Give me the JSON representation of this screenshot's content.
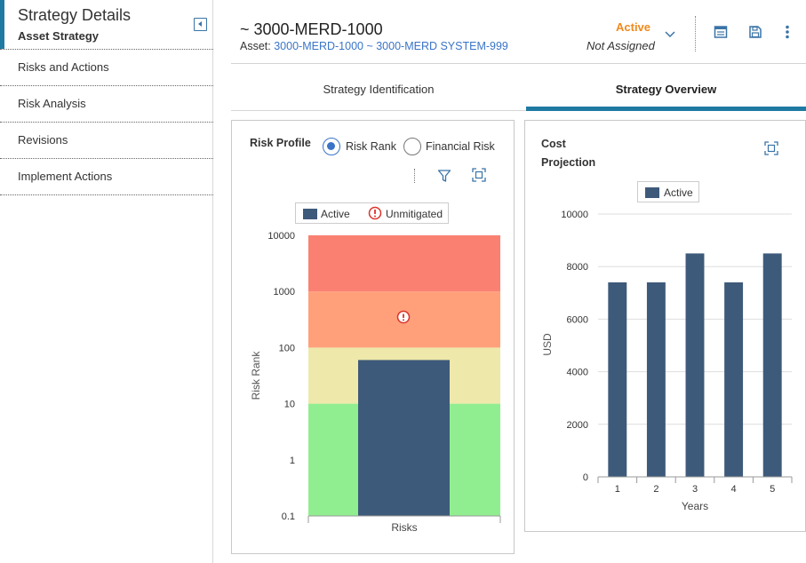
{
  "sidebar": {
    "title": "Strategy Details",
    "subtitle": "Asset Strategy",
    "items": [
      {
        "label": "Risks and Actions"
      },
      {
        "label": "Risk Analysis"
      },
      {
        "label": "Revisions"
      },
      {
        "label": "Implement Actions"
      }
    ]
  },
  "header": {
    "title": "~ 3000-MERD-1000",
    "asset_prefix": "Asset:",
    "asset_link": "3000-MERD-1000 ~ 3000-MERD SYSTEM-999",
    "status": "Active",
    "assignment": "Not Assigned"
  },
  "tabs": [
    {
      "label": "Strategy Identification",
      "active": false
    },
    {
      "label": "Strategy Overview",
      "active": true
    }
  ],
  "risk_profile": {
    "title": "Risk Profile",
    "options": [
      {
        "label": "Risk Rank",
        "selected": true
      },
      {
        "label": "Financial Risk",
        "selected": false
      }
    ]
  },
  "cost_projection": {
    "title": "Cost Projection"
  },
  "colors": {
    "accent": "#1f7aa3",
    "status_orange": "#f08a1c",
    "link_blue": "#3a74c8",
    "bar": "#3e5a7a",
    "band_red": "#fa8072",
    "band_orange": "#ffa07a",
    "band_yellow": "#eee8aa",
    "band_green": "#90ee90"
  },
  "chart_data": [
    {
      "type": "bar",
      "title": "Risk Profile",
      "xlabel": "Risks",
      "ylabel": "Risk Rank",
      "yscale": "log",
      "ylim": [
        0.1,
        10000
      ],
      "yticks": [
        "0.1",
        "1",
        "10",
        "100",
        "1000",
        "10000"
      ],
      "categories": [
        ""
      ],
      "series": [
        {
          "name": "Active",
          "values": [
            60
          ]
        }
      ],
      "legend": [
        "Active",
        "Unmitigated"
      ],
      "unmitigated_marker": 350,
      "bands": [
        {
          "from": 0.1,
          "to": 10,
          "color": "#90ee90"
        },
        {
          "from": 10,
          "to": 100,
          "color": "#eee8aa"
        },
        {
          "from": 100,
          "to": 1000,
          "color": "#ffa07a"
        },
        {
          "from": 1000,
          "to": 10000,
          "color": "#fa8072"
        }
      ]
    },
    {
      "type": "bar",
      "title": "Cost Projection",
      "xlabel": "Years",
      "ylabel": "USD",
      "ylim": [
        0,
        10000
      ],
      "yticks": [
        "0",
        "2000",
        "4000",
        "6000",
        "8000",
        "10000"
      ],
      "categories": [
        "1",
        "2",
        "3",
        "4",
        "5"
      ],
      "series": [
        {
          "name": "Active",
          "values": [
            7400,
            7400,
            8500,
            7400,
            8500
          ]
        }
      ],
      "legend": [
        "Active"
      ]
    }
  ]
}
